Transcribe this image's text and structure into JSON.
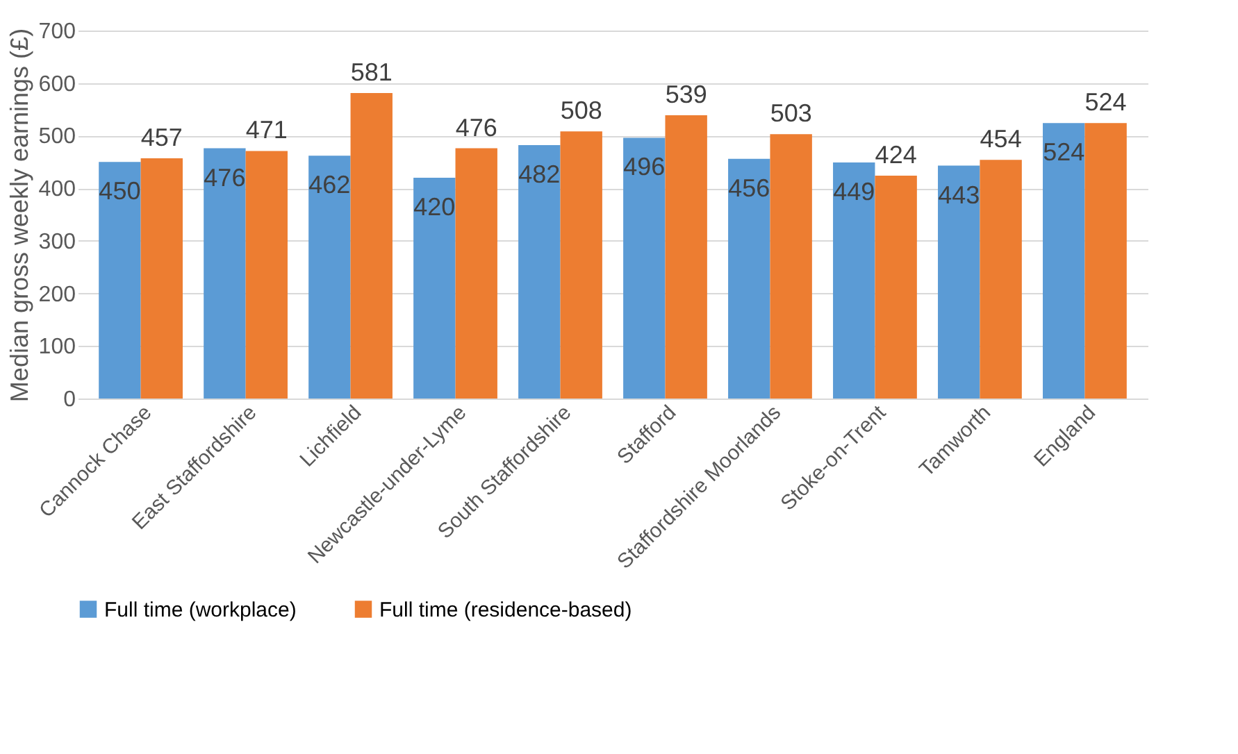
{
  "chart_data": {
    "type": "bar",
    "categories": [
      "Cannock Chase",
      "East Staffordshire",
      "Lichfield",
      "Newcastle-under-Lyme",
      "South Staffordshire",
      "Stafford",
      "Staffordshire Moorlands",
      "Stoke-on-Trent",
      "Tamworth",
      "England"
    ],
    "series": [
      {
        "name": "Full time (workplace)",
        "color": "#5b9bd5",
        "values": [
          450,
          476,
          462,
          420,
          482,
          496,
          456,
          449,
          443,
          524
        ]
      },
      {
        "name": "Full time (residence-based)",
        "color": "#ed7d31",
        "values": [
          457,
          471,
          581,
          476,
          508,
          539,
          503,
          424,
          454,
          524
        ]
      }
    ],
    "ylabel": "Median gross weekly earnings (£)",
    "ylim": [
      0,
      700
    ],
    "yticks": [
      0,
      100,
      200,
      300,
      400,
      500,
      600,
      700
    ],
    "grid": "y",
    "legend": "bottom",
    "data_labels": true
  }
}
